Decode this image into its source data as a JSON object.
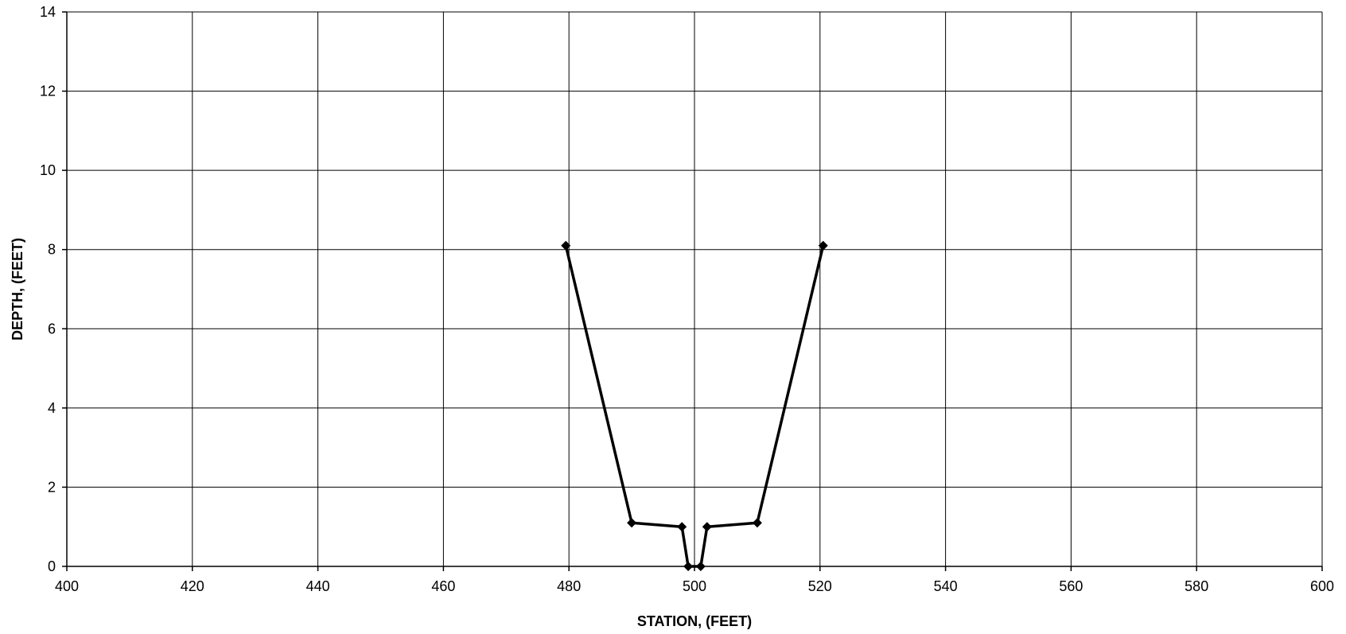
{
  "chart_data": {
    "type": "line",
    "title": "",
    "xlabel": "STATION, (FEET)",
    "ylabel": "DEPTH, (FEET)",
    "xlim": [
      400,
      600
    ],
    "ylim": [
      0,
      14
    ],
    "x_ticks": [
      400,
      420,
      440,
      460,
      480,
      500,
      520,
      540,
      560,
      580,
      600
    ],
    "y_ticks": [
      0,
      2,
      4,
      6,
      8,
      10,
      12,
      14
    ],
    "grid": true,
    "legend": "none",
    "series": [
      {
        "x": [
          479.5,
          490,
          498,
          499,
          501,
          502,
          510,
          520.5
        ],
        "y": [
          8.1,
          1.1,
          1.0,
          0.0,
          0.0,
          1.0,
          1.1,
          8.1
        ],
        "color": "#000000",
        "marker": "diamond"
      }
    ]
  }
}
